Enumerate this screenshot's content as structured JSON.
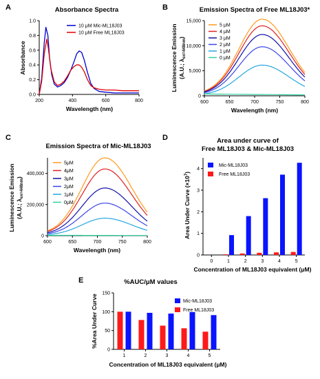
{
  "chart_data": [
    {
      "panel": "A",
      "type": "line",
      "title": "Absorbance Spectra",
      "xlabel": "Wavelength (nm)",
      "ylabel": "Absorbance",
      "xlim": [
        200,
        800
      ],
      "ylim": [
        0,
        1.0
      ],
      "xticks": [
        "200",
        "400",
        "600",
        "800"
      ],
      "yticks": [
        "0.0",
        "0.2",
        "0.4",
        "0.6",
        "0.8",
        "1.0"
      ],
      "legend_position": "top-right",
      "series": [
        {
          "name": "10 μM Mic-ML18J03",
          "color": "#0000cc",
          "x": [
            200,
            215,
            230,
            240,
            252,
            262,
            275,
            290,
            310,
            330,
            350,
            370,
            390,
            410,
            425,
            440,
            455,
            470,
            490,
            510,
            530,
            560,
            600,
            650,
            700,
            750,
            800
          ],
          "y": [
            0.0,
            0.22,
            0.7,
            0.91,
            0.8,
            0.5,
            0.27,
            0.14,
            0.1,
            0.12,
            0.16,
            0.23,
            0.33,
            0.45,
            0.55,
            0.59,
            0.57,
            0.47,
            0.3,
            0.15,
            0.08,
            0.04,
            0.03,
            0.02,
            0.02,
            0.02,
            0.02
          ]
        },
        {
          "name": "10 μM Free ML18J03",
          "color": "#dd0000",
          "x": [
            200,
            215,
            230,
            245,
            255,
            270,
            290,
            310,
            330,
            350,
            370,
            390,
            410,
            425,
            440,
            455,
            470,
            490,
            510,
            530,
            560,
            600,
            650,
            700,
            750,
            800
          ],
          "y": [
            0.0,
            0.18,
            0.55,
            0.75,
            0.62,
            0.35,
            0.17,
            0.12,
            0.14,
            0.18,
            0.25,
            0.33,
            0.38,
            0.4,
            0.4,
            0.37,
            0.31,
            0.2,
            0.12,
            0.09,
            0.07,
            0.06,
            0.06,
            0.05,
            0.05,
            0.05
          ]
        }
      ]
    },
    {
      "panel": "B",
      "type": "line",
      "title": "Emission Spectra of Free ML18J03*",
      "xlabel": "Wavelength (nm)",
      "ylabel": "Luminescence Emission",
      "ylabel2": "(A.U.; λ",
      "ylabel2_sub": "ex=448nm",
      "ylabel2_end": ")",
      "xlim": [
        600,
        800
      ],
      "ylim": [
        0,
        15000
      ],
      "xticks": [
        "600",
        "650",
        "700",
        "750",
        "800"
      ],
      "yticks": [
        "0",
        "5,000",
        "10,000",
        "15,000"
      ],
      "legend_position": "top-left",
      "series": [
        {
          "name": "5 μM",
          "color": "#ff9a1a",
          "peak": 15000
        },
        {
          "name": "4 μM",
          "color": "#e02020",
          "peak": 13700
        },
        {
          "name": "3 μM",
          "color": "#1010a8",
          "peak": 12000
        },
        {
          "name": "2 μM",
          "color": "#3b45e8",
          "peak": 9600
        },
        {
          "name": "1 μM",
          "color": "#26a6e0",
          "peak": 6000
        },
        {
          "name": "0 μM",
          "color": "#30d0a0",
          "peak": 300
        }
      ]
    },
    {
      "panel": "C",
      "type": "line",
      "title": "Emission Spectra of Mic-ML18J03",
      "xlabel": "Wavelength (nm)",
      "ylabel": "Luminescence Emission",
      "ylabel2": "(A.U.; λ",
      "ylabel2_sub": "ex=448nm",
      "ylabel2_end": ")",
      "xlim": [
        600,
        800
      ],
      "ylim": [
        0,
        500000
      ],
      "xticks": [
        "600",
        "650",
        "700",
        "750",
        "800"
      ],
      "yticks": [
        "0",
        "200,000",
        "400,000"
      ],
      "legend_position": "top-left",
      "series": [
        {
          "name": "5μM",
          "color": "#ff9a1a",
          "peak": 490000
        },
        {
          "name": "4μM",
          "color": "#e02020",
          "peak": 420000
        },
        {
          "name": "3μM",
          "color": "#1010a8",
          "peak": 300000
        },
        {
          "name": "2μM",
          "color": "#3b45e8",
          "peak": 205000
        },
        {
          "name": "1μM",
          "color": "#26a6e0",
          "peak": 110000
        },
        {
          "name": "0μM",
          "color": "#30d0a0",
          "peak": 2000
        }
      ]
    },
    {
      "panel": "D",
      "type": "bar",
      "title": "Area under curve of",
      "title2": "Free ML18J03 & Mic-ML18J03",
      "xlabel": "Concentration of ML18J03 equivalent (μM)",
      "ylabel": "Area Under Curve  (×10",
      "ylabel_sup": "7",
      "ylabel_end": ")",
      "categories": [
        "0",
        "1",
        "2",
        "3",
        "4",
        "5"
      ],
      "ylim": [
        0,
        4.5
      ],
      "yticks": [
        "0",
        "1",
        "2",
        "3",
        "4"
      ],
      "legend_position": "top-left",
      "series": [
        {
          "name": "Mic-ML18J03",
          "color": "#0a14ff",
          "values": [
            0.0,
            0.92,
            1.8,
            2.63,
            3.72,
            4.27
          ]
        },
        {
          "name": "Free ML18J03",
          "color": "#ff1a1a",
          "values": [
            0.0,
            0.03,
            0.07,
            0.1,
            0.12,
            0.14
          ]
        }
      ]
    },
    {
      "panel": "E",
      "type": "bar",
      "title": "%AUC/μM values",
      "xlabel": "Concentration of ML18J03 equivalent (μM)",
      "ylabel": "%Area Under Curve",
      "categories": [
        "1",
        "2",
        "3",
        "4",
        "5"
      ],
      "ylim": [
        0,
        150
      ],
      "yticks": [
        "0",
        "50",
        "100",
        "150"
      ],
      "legend_position": "top-right",
      "series": [
        {
          "name": "Mic-ML18J03",
          "color": "#0a14ff",
          "values": [
            100,
            97,
            95,
            99,
            91
          ]
        },
        {
          "name": "Free ML18J03",
          "color": "#ff1a1a",
          "values": [
            100,
            78,
            63,
            56,
            47
          ]
        }
      ]
    }
  ]
}
